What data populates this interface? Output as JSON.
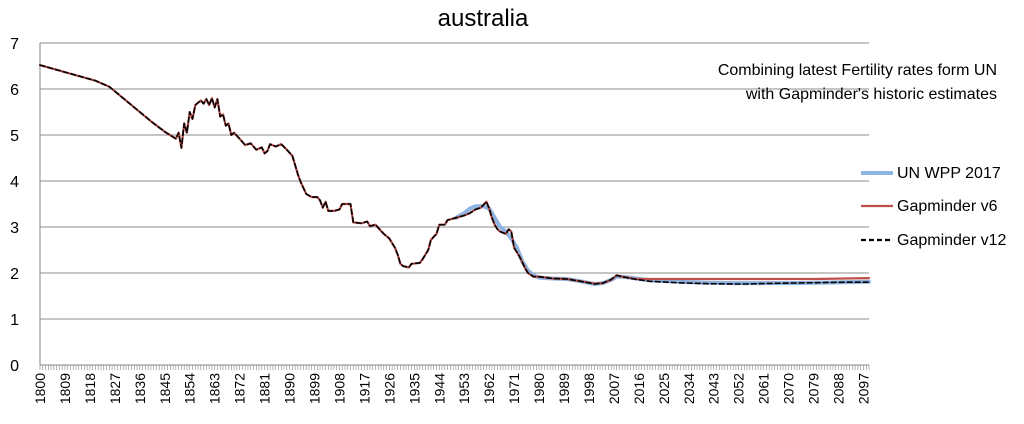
{
  "chart_data": {
    "type": "line",
    "title": "australia",
    "annotation": [
      "Combining latest Fertility rates form UN",
      "with Gapminder's historic estimates"
    ],
    "xlabel": "",
    "ylabel": "",
    "xlim": [
      1800,
      2099
    ],
    "ylim": [
      0,
      7
    ],
    "yticks": [
      0,
      1,
      2,
      3,
      4,
      5,
      6,
      7
    ],
    "xtick_labels": [
      "1800",
      "1809",
      "1818",
      "1827",
      "1836",
      "1845",
      "1854",
      "1863",
      "1872",
      "1881",
      "1890",
      "1899",
      "1908",
      "1917",
      "1926",
      "1935",
      "1944",
      "1953",
      "1962",
      "1971",
      "1980",
      "1989",
      "1998",
      "2007",
      "2016",
      "2025",
      "2034",
      "2043",
      "2052",
      "2061",
      "2070",
      "2079",
      "2088",
      "2097"
    ],
    "grid": "horizontal",
    "legend_position": "right",
    "series": [
      {
        "name": "UN WPP 2017",
        "color": "#8db3e2",
        "style": "solid",
        "points": [
          [
            1950,
            3.2
          ],
          [
            1953,
            3.3
          ],
          [
            1955,
            3.4
          ],
          [
            1957,
            3.45
          ],
          [
            1960,
            3.45
          ],
          [
            1962,
            3.4
          ],
          [
            1964,
            3.2
          ],
          [
            1966,
            3.0
          ],
          [
            1968,
            2.9
          ],
          [
            1970,
            2.75
          ],
          [
            1972,
            2.55
          ],
          [
            1974,
            2.25
          ],
          [
            1976,
            2.05
          ],
          [
            1978,
            1.95
          ],
          [
            1980,
            1.9
          ],
          [
            1985,
            1.88
          ],
          [
            1990,
            1.87
          ],
          [
            1995,
            1.82
          ],
          [
            2000,
            1.76
          ],
          [
            2003,
            1.78
          ],
          [
            2006,
            1.85
          ],
          [
            2008,
            1.92
          ],
          [
            2010,
            1.92
          ],
          [
            2015,
            1.88
          ],
          [
            2020,
            1.84
          ],
          [
            2030,
            1.81
          ],
          [
            2040,
            1.79
          ],
          [
            2050,
            1.78
          ],
          [
            2060,
            1.78
          ],
          [
            2070,
            1.78
          ],
          [
            2080,
            1.79
          ],
          [
            2090,
            1.8
          ],
          [
            2099,
            1.81
          ]
        ]
      },
      {
        "name": "Gapminder v6",
        "color": "#c0504d",
        "style": "solid",
        "points": [
          [
            1800,
            6.52
          ],
          [
            1810,
            6.35
          ],
          [
            1820,
            6.18
          ],
          [
            1825,
            6.05
          ],
          [
            1830,
            5.8
          ],
          [
            1835,
            5.55
          ],
          [
            1840,
            5.3
          ],
          [
            1845,
            5.07
          ],
          [
            1849,
            4.92
          ],
          [
            1850,
            5.05
          ],
          [
            1851,
            4.72
          ],
          [
            1852,
            5.25
          ],
          [
            1853,
            5.05
          ],
          [
            1854,
            5.5
          ],
          [
            1855,
            5.35
          ],
          [
            1856,
            5.65
          ],
          [
            1857,
            5.7
          ],
          [
            1858,
            5.75
          ],
          [
            1859,
            5.68
          ],
          [
            1860,
            5.78
          ],
          [
            1861,
            5.65
          ],
          [
            1862,
            5.8
          ],
          [
            1863,
            5.6
          ],
          [
            1864,
            5.78
          ],
          [
            1865,
            5.4
          ],
          [
            1866,
            5.45
          ],
          [
            1867,
            5.2
          ],
          [
            1868,
            5.25
          ],
          [
            1869,
            5.0
          ],
          [
            1870,
            5.05
          ],
          [
            1872,
            4.92
          ],
          [
            1874,
            4.78
          ],
          [
            1876,
            4.82
          ],
          [
            1878,
            4.68
          ],
          [
            1880,
            4.73
          ],
          [
            1881,
            4.6
          ],
          [
            1882,
            4.65
          ],
          [
            1883,
            4.8
          ],
          [
            1885,
            4.75
          ],
          [
            1887,
            4.8
          ],
          [
            1889,
            4.68
          ],
          [
            1891,
            4.55
          ],
          [
            1892,
            4.35
          ],
          [
            1893,
            4.15
          ],
          [
            1894,
            3.98
          ],
          [
            1896,
            3.72
          ],
          [
            1898,
            3.65
          ],
          [
            1900,
            3.65
          ],
          [
            1901,
            3.58
          ],
          [
            1902,
            3.42
          ],
          [
            1903,
            3.55
          ],
          [
            1904,
            3.35
          ],
          [
            1906,
            3.35
          ],
          [
            1908,
            3.38
          ],
          [
            1909,
            3.5
          ],
          [
            1912,
            3.5
          ],
          [
            1913,
            3.1
          ],
          [
            1916,
            3.08
          ],
          [
            1918,
            3.12
          ],
          [
            1919,
            3.02
          ],
          [
            1921,
            3.05
          ],
          [
            1922,
            2.98
          ],
          [
            1924,
            2.85
          ],
          [
            1926,
            2.75
          ],
          [
            1928,
            2.55
          ],
          [
            1929,
            2.4
          ],
          [
            1930,
            2.2
          ],
          [
            1931,
            2.15
          ],
          [
            1933,
            2.12
          ],
          [
            1934,
            2.2
          ],
          [
            1937,
            2.22
          ],
          [
            1938,
            2.3
          ],
          [
            1940,
            2.5
          ],
          [
            1941,
            2.72
          ],
          [
            1943,
            2.85
          ],
          [
            1944,
            3.05
          ],
          [
            1946,
            3.05
          ],
          [
            1947,
            3.15
          ],
          [
            1950,
            3.2
          ],
          [
            1953,
            3.25
          ],
          [
            1955,
            3.3
          ],
          [
            1957,
            3.38
          ],
          [
            1959,
            3.42
          ],
          [
            1961,
            3.55
          ],
          [
            1962,
            3.4
          ],
          [
            1963,
            3.2
          ],
          [
            1964,
            3.05
          ],
          [
            1965,
            2.95
          ],
          [
            1966,
            2.9
          ],
          [
            1968,
            2.85
          ],
          [
            1969,
            2.95
          ],
          [
            1970,
            2.9
          ],
          [
            1971,
            2.55
          ],
          [
            1973,
            2.35
          ],
          [
            1975,
            2.1
          ],
          [
            1976,
            2.0
          ],
          [
            1978,
            1.92
          ],
          [
            1980,
            1.92
          ],
          [
            1985,
            1.88
          ],
          [
            1990,
            1.87
          ],
          [
            1995,
            1.82
          ],
          [
            2000,
            1.77
          ],
          [
            2003,
            1.78
          ],
          [
            2006,
            1.85
          ],
          [
            2008,
            1.95
          ],
          [
            2010,
            1.92
          ],
          [
            2015,
            1.87
          ],
          [
            2020,
            1.87
          ],
          [
            2040,
            1.87
          ],
          [
            2060,
            1.87
          ],
          [
            2080,
            1.87
          ],
          [
            2090,
            1.88
          ],
          [
            2099,
            1.89
          ]
        ]
      },
      {
        "name": "Gapminder v12",
        "color": "#000000",
        "style": "dashed",
        "points": [
          [
            1800,
            6.52
          ],
          [
            1810,
            6.35
          ],
          [
            1820,
            6.18
          ],
          [
            1825,
            6.05
          ],
          [
            1830,
            5.8
          ],
          [
            1835,
            5.55
          ],
          [
            1840,
            5.3
          ],
          [
            1845,
            5.07
          ],
          [
            1849,
            4.92
          ],
          [
            1850,
            5.05
          ],
          [
            1851,
            4.72
          ],
          [
            1852,
            5.25
          ],
          [
            1853,
            5.05
          ],
          [
            1854,
            5.5
          ],
          [
            1855,
            5.35
          ],
          [
            1856,
            5.65
          ],
          [
            1857,
            5.7
          ],
          [
            1858,
            5.75
          ],
          [
            1859,
            5.68
          ],
          [
            1860,
            5.78
          ],
          [
            1861,
            5.65
          ],
          [
            1862,
            5.8
          ],
          [
            1863,
            5.6
          ],
          [
            1864,
            5.78
          ],
          [
            1865,
            5.4
          ],
          [
            1866,
            5.45
          ],
          [
            1867,
            5.2
          ],
          [
            1868,
            5.25
          ],
          [
            1869,
            5.0
          ],
          [
            1870,
            5.05
          ],
          [
            1872,
            4.92
          ],
          [
            1874,
            4.78
          ],
          [
            1876,
            4.82
          ],
          [
            1878,
            4.68
          ],
          [
            1880,
            4.73
          ],
          [
            1881,
            4.6
          ],
          [
            1882,
            4.65
          ],
          [
            1883,
            4.8
          ],
          [
            1885,
            4.75
          ],
          [
            1887,
            4.8
          ],
          [
            1889,
            4.68
          ],
          [
            1891,
            4.55
          ],
          [
            1892,
            4.35
          ],
          [
            1893,
            4.15
          ],
          [
            1894,
            3.98
          ],
          [
            1896,
            3.72
          ],
          [
            1898,
            3.65
          ],
          [
            1900,
            3.65
          ],
          [
            1901,
            3.58
          ],
          [
            1902,
            3.42
          ],
          [
            1903,
            3.55
          ],
          [
            1904,
            3.35
          ],
          [
            1906,
            3.35
          ],
          [
            1908,
            3.38
          ],
          [
            1909,
            3.5
          ],
          [
            1912,
            3.5
          ],
          [
            1913,
            3.1
          ],
          [
            1916,
            3.08
          ],
          [
            1918,
            3.12
          ],
          [
            1919,
            3.02
          ],
          [
            1921,
            3.05
          ],
          [
            1922,
            2.98
          ],
          [
            1924,
            2.85
          ],
          [
            1926,
            2.75
          ],
          [
            1928,
            2.55
          ],
          [
            1929,
            2.4
          ],
          [
            1930,
            2.2
          ],
          [
            1931,
            2.15
          ],
          [
            1933,
            2.12
          ],
          [
            1934,
            2.2
          ],
          [
            1937,
            2.22
          ],
          [
            1938,
            2.3
          ],
          [
            1940,
            2.5
          ],
          [
            1941,
            2.72
          ],
          [
            1943,
            2.85
          ],
          [
            1944,
            3.05
          ],
          [
            1946,
            3.05
          ],
          [
            1947,
            3.15
          ],
          [
            1950,
            3.2
          ],
          [
            1953,
            3.25
          ],
          [
            1955,
            3.3
          ],
          [
            1957,
            3.38
          ],
          [
            1959,
            3.42
          ],
          [
            1961,
            3.55
          ],
          [
            1962,
            3.4
          ],
          [
            1963,
            3.2
          ],
          [
            1964,
            3.05
          ],
          [
            1965,
            2.95
          ],
          [
            1966,
            2.9
          ],
          [
            1968,
            2.85
          ],
          [
            1969,
            2.95
          ],
          [
            1970,
            2.9
          ],
          [
            1971,
            2.55
          ],
          [
            1973,
            2.35
          ],
          [
            1975,
            2.1
          ],
          [
            1976,
            2.0
          ],
          [
            1978,
            1.92
          ],
          [
            1980,
            1.92
          ],
          [
            1985,
            1.88
          ],
          [
            1990,
            1.87
          ],
          [
            1995,
            1.82
          ],
          [
            2000,
            1.76
          ],
          [
            2003,
            1.78
          ],
          [
            2006,
            1.86
          ],
          [
            2008,
            1.95
          ],
          [
            2010,
            1.92
          ],
          [
            2015,
            1.86
          ],
          [
            2020,
            1.82
          ],
          [
            2030,
            1.79
          ],
          [
            2040,
            1.77
          ],
          [
            2050,
            1.76
          ],
          [
            2055,
            1.76
          ],
          [
            2060,
            1.77
          ],
          [
            2070,
            1.78
          ],
          [
            2080,
            1.79
          ],
          [
            2090,
            1.8
          ],
          [
            2099,
            1.8
          ]
        ]
      }
    ]
  }
}
